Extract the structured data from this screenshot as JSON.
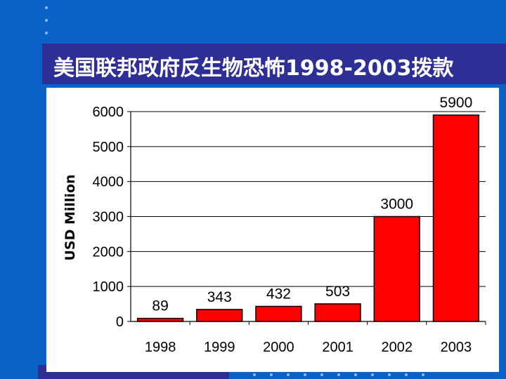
{
  "slide": {
    "title": "美国联邦政府反生物恐怖1998-2003拨款",
    "background_color": "#0a62c8",
    "title_band_color": "#2e2f96"
  },
  "chart_data": {
    "type": "bar",
    "categories": [
      "1998",
      "1999",
      "2000",
      "2001",
      "2002",
      "2003"
    ],
    "values": [
      89,
      343,
      432,
      503,
      3000,
      5900
    ],
    "data_labels": [
      "89",
      "343",
      "432",
      "503",
      "3000",
      "5900"
    ],
    "title": "",
    "xlabel": "",
    "ylabel": "USD Million",
    "ylim": [
      0,
      6000
    ],
    "yticks": [
      0,
      1000,
      2000,
      3000,
      4000,
      5000,
      6000
    ],
    "grid": true,
    "legend": "none",
    "bar_color": "#ff0000"
  }
}
